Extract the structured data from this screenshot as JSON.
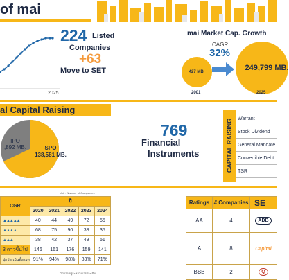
{
  "header": {
    "title": "of mai"
  },
  "listed": {
    "count": "224",
    "label_listed": "Listed",
    "label_companies": "Companies",
    "move_count": "+63",
    "move_label": "Move to SET",
    "chart_end_year": "2025"
  },
  "market_cap": {
    "title": "mai Market Cap. Growth",
    "cagr_label": "CAGR",
    "cagr_value": "32%",
    "start_value": "427 MB.",
    "end_value": "249,799 MB.",
    "start_year": "2001",
    "end_year": "2025"
  },
  "capital_raising": {
    "title": "al Capital Raising",
    "ipo_name": "IPO",
    "ipo_value": ",892 MB.",
    "spo_name": "SPO",
    "spo_value": "138,581 MB.",
    "spo_share": 0.68
  },
  "instruments": {
    "count": "769",
    "label_1": "Financial",
    "label_2": "Instruments",
    "ribbon_label": "CAPITAL RAISING",
    "items": [
      "Warrant",
      "Stock Dividend",
      "General Mandate",
      "Convertible Debt",
      "TSR"
    ]
  },
  "stats_table": {
    "unit_note": "Unit : Number of Companies",
    "left_header": "CGR",
    "group_header": "ปี",
    "years": [
      "2020",
      "2021",
      "2022",
      "2023",
      "2024"
    ],
    "rows": [
      {
        "label": "▲▲▲▲▲",
        "values": [
          "40",
          "44",
          "49",
          "72",
          "55"
        ]
      },
      {
        "label": "▲▲▲▲",
        "values": [
          "68",
          "75",
          "90",
          "38",
          "35"
        ]
      },
      {
        "label": "▲▲▲",
        "values": [
          "38",
          "42",
          "37",
          "49",
          "51"
        ]
      },
      {
        "label": "3 ดาวขึ้นไป",
        "values": [
          "146",
          "161",
          "176",
          "159",
          "141"
        ]
      },
      {
        "label": "ปุกประเมินทั้งหมด",
        "values": [
          "91%",
          "94%",
          "98%",
          "83%",
          "71%"
        ]
      }
    ],
    "footnote": "ปี 2025 อยู่ระหว่างการประเมิน"
  },
  "ratings_table": {
    "headers": [
      "Ratings",
      "# Companies",
      "SE"
    ],
    "rows": [
      {
        "rating": "AA",
        "companies": "4",
        "logo": "ADB"
      },
      {
        "rating": "A",
        "companies": "8",
        "logo": "Capital"
      },
      {
        "rating": "BBB",
        "companies": "2",
        "logo": "Q"
      }
    ]
  },
  "colors": {
    "accent_yellow": "#f7b718",
    "navy": "#1f2a44",
    "blue": "#2067a8",
    "orange": "#f59a3b",
    "ipo_gray": "#7f7f7f"
  }
}
